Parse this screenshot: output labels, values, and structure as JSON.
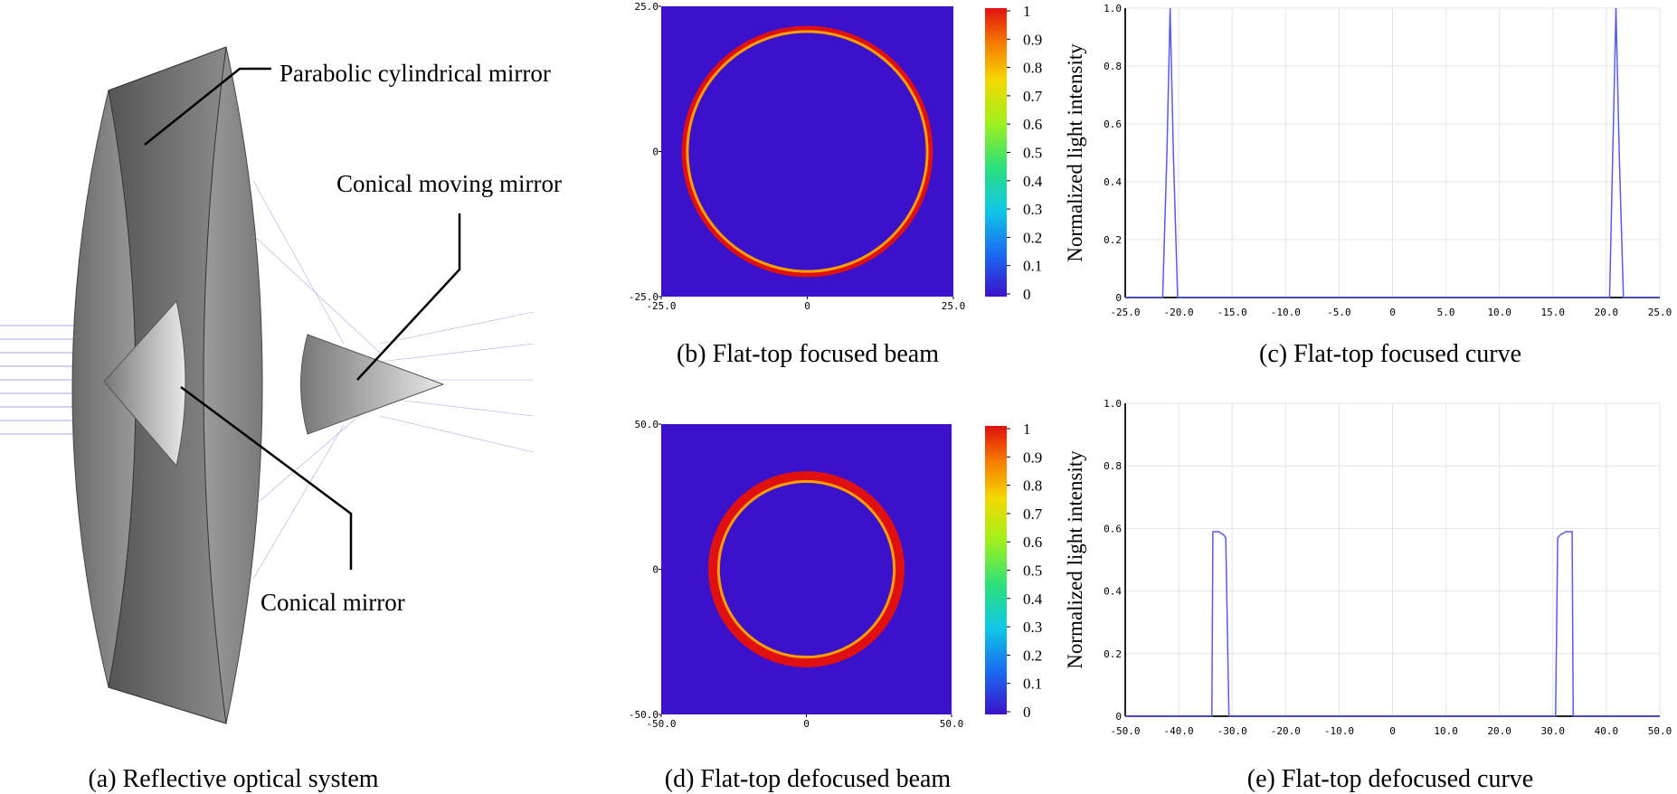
{
  "diagram": {
    "labels": [
      "Parabolic cylindrical mirror",
      "Conical moving mirror",
      "Conical mirror"
    ],
    "caption": "(a) Reflective optical system"
  },
  "chart_data": [
    {
      "type": "image",
      "caption": "(b) Flat-top focused beam",
      "xlim": [
        -25,
        25
      ],
      "ylim": [
        -25,
        25
      ],
      "xticks": [
        {
          "value": -25,
          "label": "-25.0"
        },
        0,
        {
          "value": 25,
          "label": "25.0"
        }
      ],
      "yticks": [
        {
          "value": -25,
          "label": "-25.0"
        },
        0,
        {
          "value": 25,
          "label": "25.0"
        }
      ],
      "ring": [
        20.3,
        21.5
      ],
      "background": "#3b12c9",
      "colorbar": {
        "ticks": [
          0,
          0.1,
          0.2,
          0.3,
          0.4,
          0.5,
          0.6,
          0.7,
          0.8,
          0.9,
          1
        ]
      }
    },
    {
      "type": "line",
      "caption": "(c) Flat-top focused curve",
      "ylabel": "Normalized light intensity",
      "color": "#5a5ae6",
      "x": [
        -25,
        -21.5,
        -21.1,
        -20.8,
        -20.5,
        -20.1,
        20.3,
        20.6,
        20.9,
        21.2,
        21.6,
        25
      ],
      "values": [
        0,
        0,
        0.5,
        1,
        0.5,
        0,
        0,
        0.5,
        1,
        0.5,
        0,
        0
      ],
      "xlim": [
        -25,
        25
      ],
      "ylim": [
        0,
        1
      ],
      "xticks": [
        {
          "value": -25,
          "label": "-25.0"
        },
        {
          "value": -20,
          "label": "-20.0"
        },
        {
          "value": -15,
          "label": "-15.0"
        },
        {
          "value": -10,
          "label": "-10.0"
        },
        {
          "value": -5,
          "label": "-5.0"
        },
        0,
        {
          "value": 5,
          "label": "5.0"
        },
        {
          "value": 10,
          "label": "10.0"
        },
        {
          "value": 15,
          "label": "15.0"
        },
        {
          "value": 20,
          "label": "20.0"
        },
        {
          "value": 25,
          "label": "25.0"
        }
      ],
      "yticks": [
        0,
        0.2,
        0.4,
        0.6,
        0.8,
        {
          "value": 1,
          "label": "1.0"
        }
      ],
      "grid": true
    },
    {
      "type": "image",
      "caption": "(d) Flat-top defocused beam",
      "xlim": [
        -50,
        50
      ],
      "ylim": [
        -50,
        50
      ],
      "xticks": [
        {
          "value": -50,
          "label": "-50.0"
        },
        0,
        {
          "value": 50,
          "label": "50.0"
        }
      ],
      "yticks": [
        {
          "value": -50,
          "label": "-50.0"
        },
        0,
        {
          "value": 50,
          "label": "50.0"
        }
      ],
      "ring": [
        29.8,
        33.8
      ],
      "background": "#3b12c9",
      "colorbar": {
        "ticks": [
          0,
          0.1,
          0.2,
          0.3,
          0.4,
          0.5,
          0.6,
          0.7,
          0.8,
          0.9,
          1
        ]
      }
    },
    {
      "type": "line",
      "caption": "(e) Flat-top defocused curve",
      "ylabel": "Normalized light intensity",
      "color": "#5a5ae6",
      "x": [
        -50,
        -33.8,
        -33.6,
        -32.5,
        -31.6,
        -31.2,
        -30.6,
        30.5,
        30.9,
        31.4,
        32.5,
        33.6,
        33.8,
        50
      ],
      "values": [
        0,
        0,
        0.59,
        0.59,
        0.58,
        0.57,
        0,
        0,
        0.57,
        0.58,
        0.59,
        0.59,
        0,
        0
      ],
      "xlim": [
        -50,
        50
      ],
      "ylim": [
        0,
        1
      ],
      "xticks": [
        {
          "value": -50,
          "label": "-50.0"
        },
        {
          "value": -40,
          "label": "-40.0"
        },
        {
          "value": -30,
          "label": "-30.0"
        },
        {
          "value": -20,
          "label": "-20.0"
        },
        {
          "value": -10,
          "label": "-10.0"
        },
        0,
        {
          "value": 10,
          "label": "10.0"
        },
        {
          "value": 20,
          "label": "20.0"
        },
        {
          "value": 30,
          "label": "30.0"
        },
        {
          "value": 40,
          "label": "40.0"
        },
        {
          "value": 50,
          "label": "50.0"
        }
      ],
      "yticks": [
        0,
        0.2,
        0.4,
        0.6,
        0.8,
        {
          "value": 1,
          "label": "1.0"
        }
      ],
      "grid": true
    }
  ]
}
